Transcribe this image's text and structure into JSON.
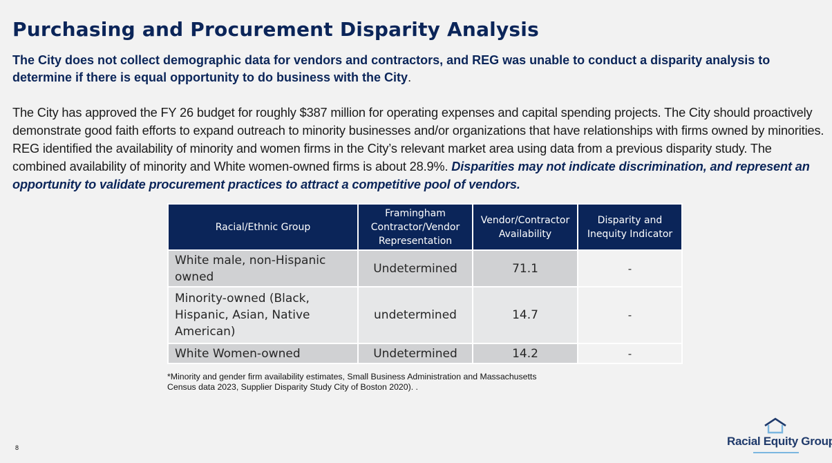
{
  "slide": {
    "title": "Purchasing and Procurement Disparity Analysis",
    "subtitle": "The City does not collect demographic data for vendors and contractors, and REG was unable to conduct a disparity analysis to determine if there is equal opportunity to do business with the City",
    "subtitle_period": ".",
    "body_text": "The City has approved the FY 26 budget for roughly $387 million for operating expenses and capital spending projects. The City should proactively demonstrate good faith efforts to expand outreach to minority businesses and/or organizations that have relationships with firms owned by minorities. REG identified the availability of minority and women firms in the City’s relevant market area using data from a previous disparity study. The combined availability of minority and White women-owned firms is about 28.9%. ",
    "body_emphasis": "Disparities may not indicate discrimination, and represent an opportunity to validate procurement practices to attract a competitive pool of vendors.",
    "footnote": "*Minority and gender firm availability estimates, Small Business Administration and Massachusetts Census data 2023, Supplier Disparity Study City of Boston 2020). .",
    "page_number": "8"
  },
  "table": {
    "headers": [
      "Racial/Ethnic Group",
      "Framingham Contractor/Vendor Representation",
      "Vendor/Contractor Availability",
      "Disparity and Inequity Indicator"
    ],
    "rows": [
      {
        "group": "White male, non-Hispanic owned",
        "representation": "Undetermined",
        "availability": "71.1",
        "indicator": "-"
      },
      {
        "group": "Minority-owned (Black, Hispanic, Asian, Native American)",
        "representation": "undetermined",
        "availability": "14.7",
        "indicator": "-"
      },
      {
        "group": "White Women-owned",
        "representation": "Undetermined",
        "availability": "14.2",
        "indicator": "-"
      }
    ]
  },
  "logo": {
    "text": "Racial Equity Group",
    "icon": "house-icon"
  },
  "colors": {
    "navy": "#0b2559",
    "logo_text": "#1f3a6b",
    "logo_accent": "#7ab6e0",
    "row_dark": "#d0d1d3",
    "row_light": "#e6e7e8",
    "background": "#f2f2f2"
  }
}
